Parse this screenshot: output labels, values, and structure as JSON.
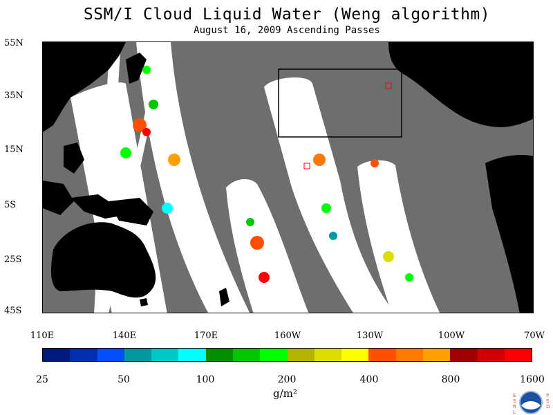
{
  "title": "SSM/I Cloud Liquid Water (Weng algorithm)",
  "subtitle": "August 16, 2009  Ascending Passes",
  "lat_labels": [
    "55N",
    "35N",
    "15N",
    "5S",
    "25S",
    "45S"
  ],
  "lon_labels": [
    "110E",
    "140E",
    "170E",
    "160W",
    "130W",
    "100W",
    "70W"
  ],
  "colorbar": {
    "colors": [
      "#001a80",
      "#0030b0",
      "#0050ff",
      "#009aa0",
      "#00c8c8",
      "#00ffff",
      "#009000",
      "#00c800",
      "#00ff00",
      "#b4b400",
      "#dcdc00",
      "#ffff00",
      "#ff5000",
      "#ff7800",
      "#ffa000",
      "#a00000",
      "#d20000",
      "#ff0000"
    ],
    "labels": [
      "25",
      "50",
      "100",
      "200",
      "400",
      "800",
      "1600"
    ]
  },
  "unit": "g/m²",
  "colors": {
    "ocean": "#6e6e6e",
    "land": "#000000",
    "swath": "#ffffff"
  }
}
